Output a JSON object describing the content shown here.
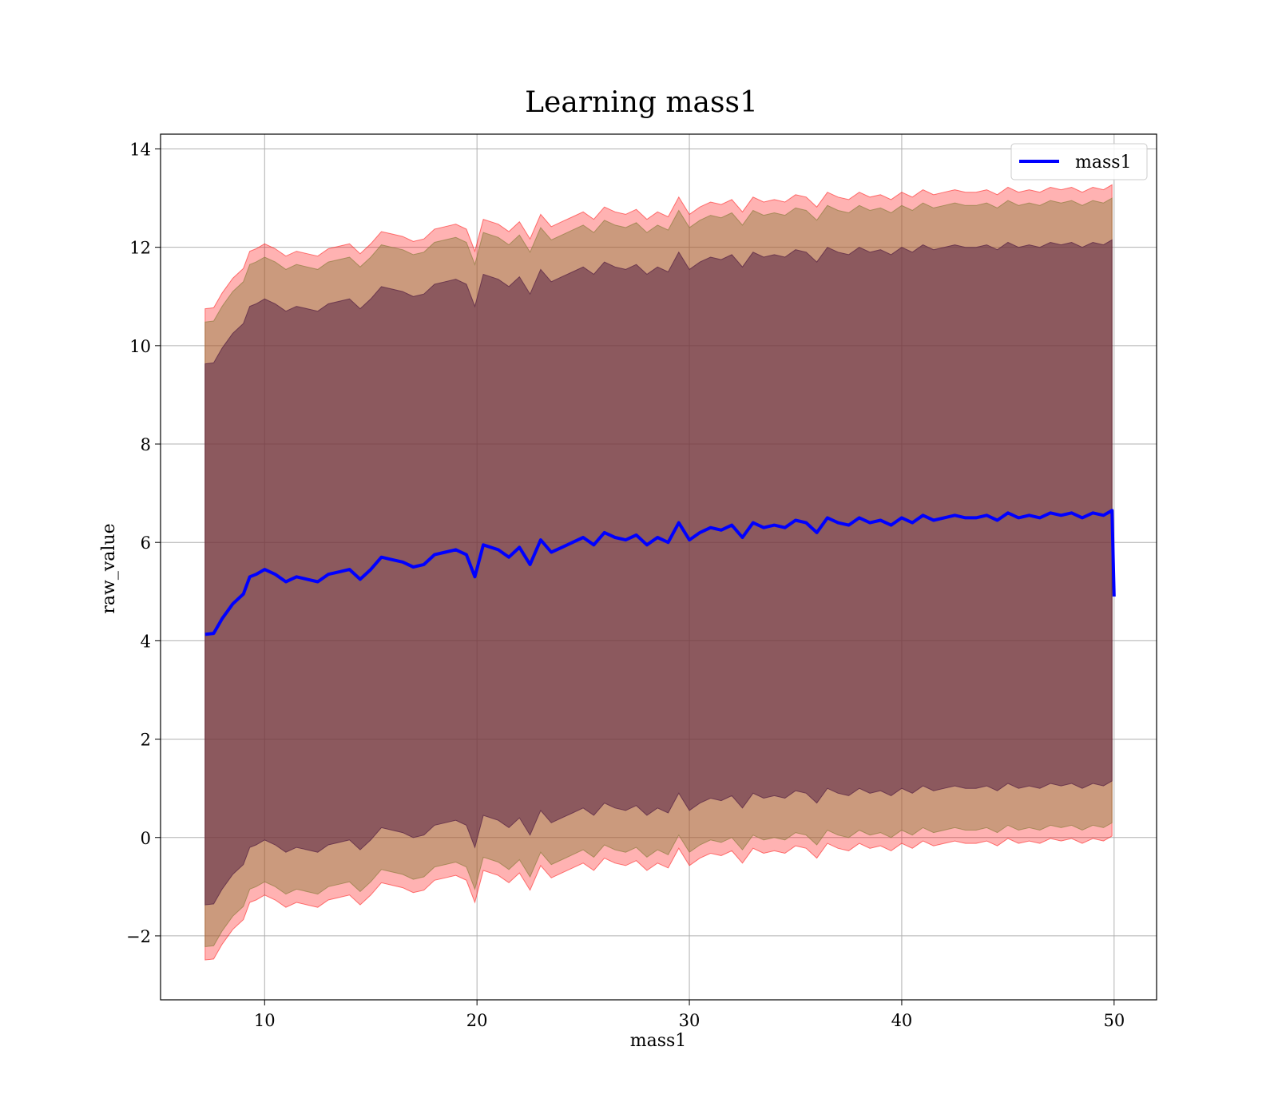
{
  "chart_data": {
    "type": "line",
    "title": "Learning mass1",
    "xlabel": "mass1",
    "ylabel": "raw_value",
    "xlim": [
      5.1,
      52.0
    ],
    "ylim": [
      -3.3,
      14.3
    ],
    "x_ticks": [
      10,
      20,
      30,
      40,
      50
    ],
    "y_ticks": [
      -2,
      0,
      2,
      4,
      6,
      8,
      10,
      12,
      14
    ],
    "x_tick_labels": [
      "10",
      "20",
      "30",
      "40",
      "50"
    ],
    "y_tick_labels": [
      "−2",
      "0",
      "2",
      "4",
      "6",
      "8",
      "10",
      "12",
      "14"
    ],
    "grid": true,
    "legend_position": "top-right",
    "x": [
      7.2,
      7.6,
      8.0,
      8.5,
      9.0,
      9.3,
      9.6,
      10.0,
      10.5,
      11.0,
      11.5,
      12.0,
      12.5,
      13.0,
      13.5,
      14.0,
      14.5,
      15.0,
      15.5,
      16.0,
      16.5,
      17.0,
      17.5,
      18.0,
      18.5,
      19.0,
      19.5,
      19.9,
      20.3,
      21.0,
      21.5,
      22.0,
      22.5,
      23.0,
      23.5,
      24.0,
      24.5,
      25.0,
      25.5,
      26.0,
      26.5,
      27.0,
      27.5,
      28.0,
      28.5,
      29.0,
      29.5,
      30.0,
      30.5,
      31.0,
      31.5,
      32.0,
      32.5,
      33.0,
      33.5,
      34.0,
      34.5,
      35.0,
      35.5,
      36.0,
      36.5,
      37.0,
      37.5,
      38.0,
      38.5,
      39.0,
      39.5,
      40.0,
      40.5,
      41.0,
      41.5,
      42.0,
      42.5,
      43.0,
      43.5,
      44.0,
      44.5,
      45.0,
      45.5,
      46.0,
      46.5,
      47.0,
      47.5,
      48.0,
      48.5,
      49.0,
      49.5,
      49.9,
      50.0
    ],
    "series": [
      {
        "name": "mass1",
        "color": "#0000ff",
        "values": [
          4.13,
          4.15,
          4.45,
          4.75,
          4.95,
          5.3,
          5.35,
          5.45,
          5.35,
          5.2,
          5.3,
          5.25,
          5.2,
          5.35,
          5.4,
          5.45,
          5.25,
          5.45,
          5.7,
          5.65,
          5.6,
          5.5,
          5.55,
          5.75,
          5.8,
          5.85,
          5.75,
          5.3,
          5.95,
          5.85,
          5.7,
          5.9,
          5.55,
          6.05,
          5.8,
          5.9,
          6.0,
          6.1,
          5.95,
          6.2,
          6.1,
          6.05,
          6.15,
          5.95,
          6.1,
          6.0,
          6.4,
          6.05,
          6.2,
          6.3,
          6.25,
          6.35,
          6.1,
          6.4,
          6.3,
          6.35,
          6.3,
          6.45,
          6.4,
          6.2,
          6.5,
          6.4,
          6.35,
          6.5,
          6.4,
          6.45,
          6.35,
          6.5,
          6.4,
          6.55,
          6.45,
          6.5,
          6.55,
          6.5,
          6.5,
          6.55,
          6.45,
          6.6,
          6.5,
          6.55,
          6.5,
          6.6,
          6.55,
          6.6,
          6.5,
          6.6,
          6.55,
          6.65,
          4.9
        ]
      }
    ],
    "bands": [
      {
        "color": "#ff0000",
        "opacity": 0.3,
        "offset_upper": 6.62,
        "offset_lower": -6.62
      },
      {
        "color": "#8b7d3c",
        "opacity": 0.45,
        "offset_upper": 6.35,
        "offset_lower": -6.35
      },
      {
        "color": "#5a2545",
        "opacity": 0.55,
        "offset_upper": 5.5,
        "offset_lower": -5.5
      }
    ]
  }
}
